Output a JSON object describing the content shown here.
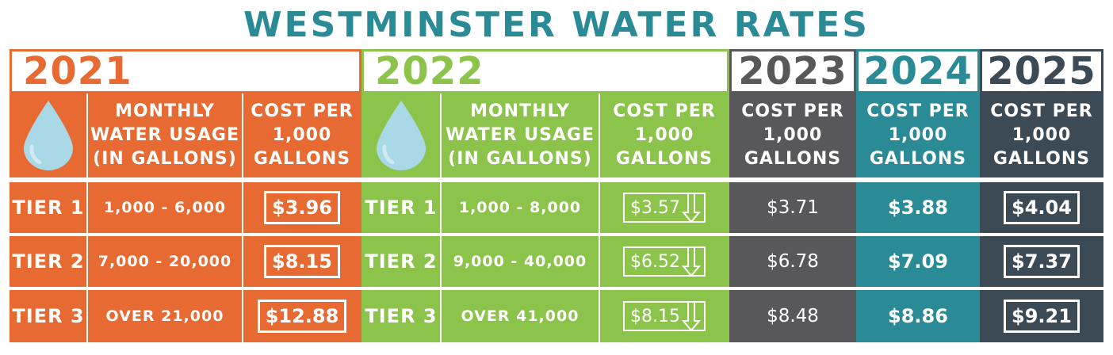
{
  "title": "WESTMINSTER WATER RATES",
  "colors": {
    "y2021": "#e66a32",
    "y2022": "#8cc34b",
    "y2023": "#58585a",
    "y2024": "#2a8a95",
    "y2025": "#3c4a55"
  },
  "years": {
    "y2021": "2021",
    "y2022": "2022",
    "y2023": "2023",
    "y2024": "2024",
    "y2025": "2025"
  },
  "headers": {
    "usage": [
      "MONTHLY",
      "WATER USAGE",
      "(IN GALLONS)"
    ],
    "cost": [
      "COST PER",
      "1,000",
      "GALLONS"
    ]
  },
  "icons": {
    "drop": "water-drop-icon",
    "down_arrow": "down-arrow-icon"
  },
  "rows": [
    {
      "tier": "TIER 1",
      "usage2021": "1,000 - 6,000",
      "p2021": "$3.96",
      "usage2022": "1,000 - 8,000",
      "p2022": "$3.57",
      "p2023": "$3.71",
      "p2024": "$3.88",
      "p2025": "$4.04"
    },
    {
      "tier": "TIER 2",
      "usage2021": "7,000 - 20,000",
      "p2021": "$8.15",
      "usage2022": "9,000 - 40,000",
      "p2022": "$6.52",
      "p2023": "$6.78",
      "p2024": "$7.09",
      "p2025": "$7.37"
    },
    {
      "tier": "TIER 3",
      "usage2021": "OVER 21,000",
      "p2021": "$12.88",
      "usage2022": "OVER 41,000",
      "p2022": "$8.15",
      "p2023": "$8.48",
      "p2024": "$8.86",
      "p2025": "$9.21"
    }
  ]
}
